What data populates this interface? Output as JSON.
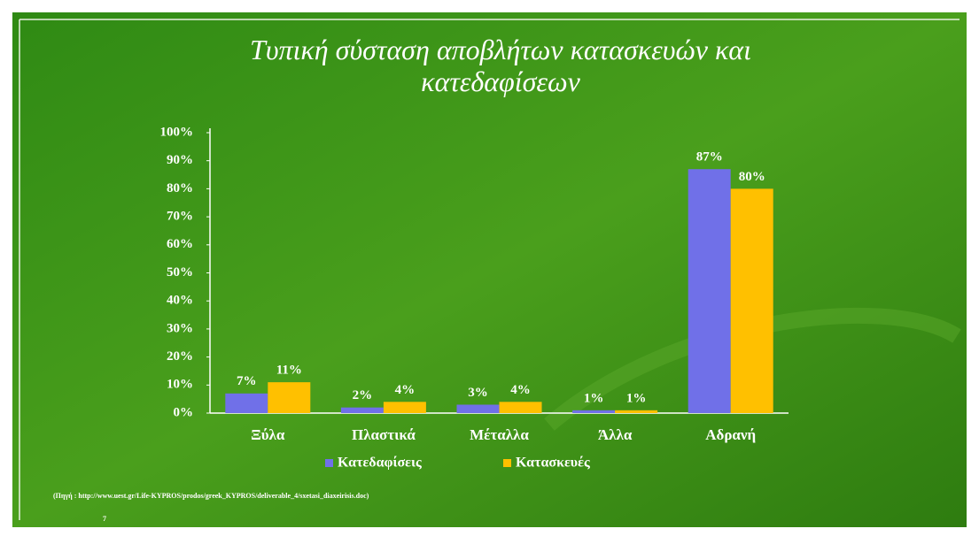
{
  "chart_data": {
    "type": "bar",
    "title": "Τυπική σύσταση αποβλήτων κατασκευών και κατεδαφίσεων",
    "categories": [
      "Ξύλα",
      "Πλαστικά",
      "Μέταλλα",
      "Άλλα",
      "Αδρανή"
    ],
    "series": [
      {
        "name": "Κατεδαφίσεις",
        "color": "#7070e8",
        "values": [
          7,
          2,
          3,
          1,
          87
        ],
        "value_labels": [
          "7%",
          "2%",
          "3%",
          "1%",
          "87%"
        ]
      },
      {
        "name": "Κατασκευές",
        "color": "#ffc000",
        "values": [
          11,
          4,
          4,
          1,
          80
        ],
        "value_labels": [
          "11%",
          "4%",
          "4%",
          "1%",
          "80%"
        ]
      }
    ],
    "ylim": [
      0,
      100
    ],
    "yticks": [
      {
        "value": 0,
        "label": "0%"
      },
      {
        "value": 10,
        "label": "10%"
      },
      {
        "value": 20,
        "label": "20%"
      },
      {
        "value": 30,
        "label": "30%"
      },
      {
        "value": 40,
        "label": "40%"
      },
      {
        "value": 50,
        "label": "50%"
      },
      {
        "value": 60,
        "label": "60%"
      },
      {
        "value": 70,
        "label": "70%"
      },
      {
        "value": 80,
        "label": "80%"
      },
      {
        "value": 90,
        "label": "90%"
      },
      {
        "value": 100,
        "label": "100%"
      }
    ],
    "legend": "bottom",
    "source": "(Πηγή : http://www.uest.gr/Life-KYPROS/prodos/greek_KYPROS/deliverable_4/sxetasi_diaxeirisis.doc)",
    "page_number": "7"
  }
}
